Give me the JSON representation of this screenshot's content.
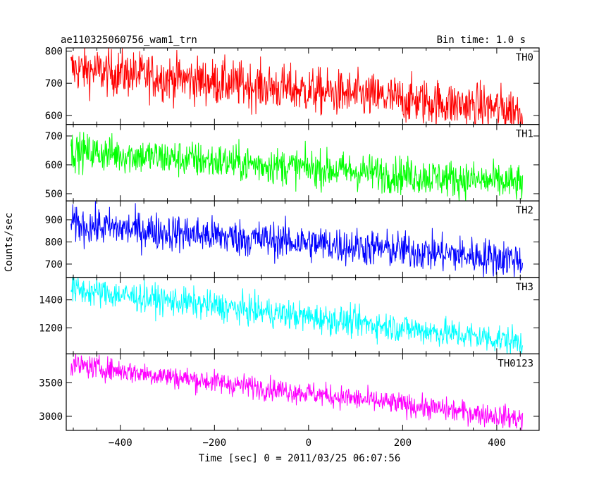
{
  "header": {
    "title": "ae110325060756_wam1_trn",
    "bin_time": "Bin time: 1.0 s"
  },
  "chart_data": {
    "type": "line",
    "xlabel": "Time [sec] 0 = 2011/03/25 06:07:56",
    "ylabel": "Counts/sec",
    "xlim": [
      -515,
      490
    ],
    "x_ticks": [
      -400,
      -200,
      0,
      200,
      400
    ],
    "x_range": [
      -505,
      455
    ],
    "grid": false,
    "panels": [
      {
        "name": "TH0",
        "color": "#ff0000",
        "ylim": [
          572,
          810
        ],
        "ticks": [
          600,
          700,
          800
        ],
        "start": 745,
        "end": 615,
        "noise": 36
      },
      {
        "name": "TH1",
        "color": "#00ff00",
        "ylim": [
          475,
          740
        ],
        "ticks": [
          500,
          600,
          700
        ],
        "start": 648,
        "end": 535,
        "noise": 32
      },
      {
        "name": "TH2",
        "color": "#0000ff",
        "ylim": [
          640,
          985
        ],
        "ticks": [
          700,
          800,
          900
        ],
        "start": 878,
        "end": 720,
        "noise": 42
      },
      {
        "name": "TH3",
        "color": "#00ffff",
        "ylim": [
          1015,
          1560
        ],
        "ticks": [
          1200,
          1400
        ],
        "start": 1475,
        "end": 1100,
        "noise": 52
      },
      {
        "name": "TH0123",
        "color": "#ff00ff",
        "ylim": [
          2790,
          3930
        ],
        "ticks": [
          3000,
          3500
        ],
        "start": 3770,
        "end": 2960,
        "noise": 85
      }
    ]
  }
}
